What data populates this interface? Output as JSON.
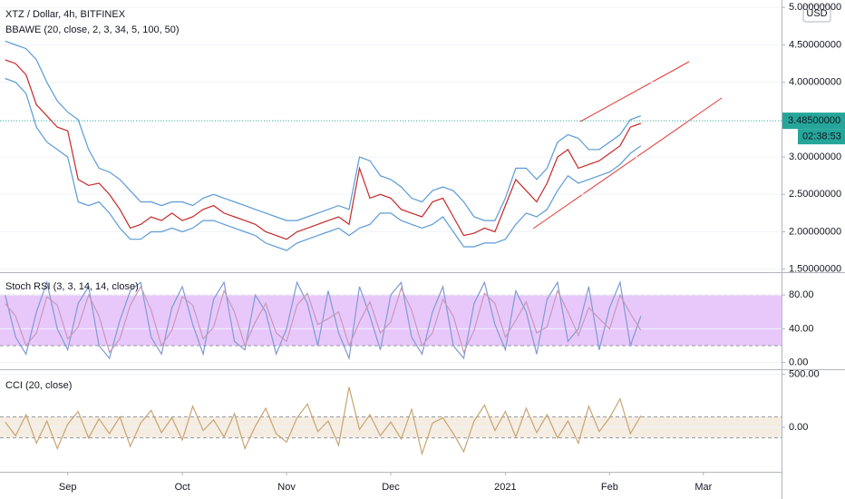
{
  "chart_data": [
    {
      "type": "line",
      "title": "XTZ / Dollar, 4h, BITFINEX",
      "subtitle": "BBAWE (20, close, 2, 3, 34, 5, 100, 50)",
      "currency": "USD",
      "last_price": {
        "value": 3.485,
        "label": "3.48500000"
      },
      "countdown": "02:38:53",
      "last_color": "#26a69a",
      "ylim": [
        1.46,
        5.1
      ],
      "yticks": [
        {
          "value": 1.5,
          "label": "1.50000000"
        },
        {
          "value": 2.0,
          "label": "2.00000000"
        },
        {
          "value": 2.5,
          "label": "2.50000000"
        },
        {
          "value": 3.0,
          "label": "3.00000000"
        },
        {
          "value": 4.0,
          "label": "4.00000000"
        },
        {
          "value": 4.5,
          "label": "4.50000000"
        },
        {
          "value": 5.0,
          "label": "5.00000000"
        }
      ],
      "grid": true,
      "series": [
        {
          "color": "#5b9bd5",
          "values": [
            4.55,
            4.5,
            4.45,
            4.3,
            4.0,
            3.75,
            3.6,
            3.5,
            3.1,
            2.85,
            2.8,
            2.7,
            2.55,
            2.4,
            2.4,
            2.35,
            2.4,
            2.4,
            2.35,
            2.45,
            2.5,
            2.45,
            2.4,
            2.35,
            2.3,
            2.25,
            2.2,
            2.15,
            2.15,
            2.2,
            2.25,
            2.3,
            2.35,
            2.3,
            3.0,
            2.95,
            2.75,
            2.7,
            2.6,
            2.45,
            2.4,
            2.55,
            2.6,
            2.55,
            2.4,
            2.2,
            2.15,
            2.15,
            2.45,
            2.85,
            2.85,
            2.7,
            2.85,
            3.2,
            3.3,
            3.25,
            3.1,
            3.1,
            3.2,
            3.3,
            3.5,
            3.55,
            null,
            null,
            null,
            null,
            null,
            null,
            null,
            null,
            null,
            null,
            null,
            null,
            null
          ]
        },
        {
          "color": "#5b9bd5",
          "values": [
            4.05,
            4.0,
            3.85,
            3.4,
            3.2,
            3.1,
            3.0,
            2.4,
            2.35,
            2.4,
            2.25,
            2.05,
            1.9,
            1.9,
            2.0,
            2.0,
            2.05,
            2.0,
            2.05,
            2.15,
            2.15,
            2.1,
            2.05,
            2.0,
            1.95,
            1.85,
            1.8,
            1.75,
            1.85,
            1.9,
            1.95,
            2.0,
            2.05,
            1.95,
            2.05,
            2.1,
            2.25,
            2.25,
            2.15,
            2.1,
            2.05,
            2.1,
            2.2,
            2.0,
            1.8,
            1.8,
            1.85,
            1.85,
            1.9,
            2.1,
            2.25,
            2.2,
            2.3,
            2.55,
            2.75,
            2.65,
            2.7,
            2.75,
            2.8,
            2.9,
            3.05,
            3.15,
            null,
            null,
            null,
            null,
            null,
            null,
            null,
            null,
            null,
            null,
            null,
            null,
            null
          ]
        },
        {
          "color": "#c62828",
          "values": [
            4.3,
            4.25,
            4.1,
            3.7,
            3.55,
            3.4,
            3.35,
            2.7,
            2.62,
            2.65,
            2.5,
            2.3,
            2.05,
            2.1,
            2.2,
            2.15,
            2.25,
            2.15,
            2.2,
            2.3,
            2.35,
            2.25,
            2.2,
            2.15,
            2.1,
            2.0,
            1.95,
            1.9,
            2.0,
            2.05,
            2.1,
            2.15,
            2.2,
            2.1,
            2.85,
            2.45,
            2.5,
            2.45,
            2.3,
            2.25,
            2.2,
            2.4,
            2.45,
            2.2,
            1.95,
            1.98,
            2.05,
            2.0,
            2.35,
            2.7,
            2.55,
            2.4,
            2.65,
            3.0,
            3.1,
            2.85,
            2.9,
            2.95,
            3.05,
            3.15,
            3.4,
            3.45,
            null,
            null,
            null,
            null,
            null,
            null,
            null,
            null,
            null,
            null,
            null,
            null,
            null
          ]
        }
      ]
    },
    {
      "type": "line",
      "title": "Stoch RSI (3, 3, 14, 14, close)",
      "ylim": [
        -8,
        106
      ],
      "yticks": [
        {
          "value": 0,
          "label": "0.00"
        },
        {
          "value": 40,
          "label": "40.00"
        },
        {
          "value": 80,
          "label": "80.00"
        }
      ],
      "grid": true,
      "band": [
        20,
        80
      ],
      "band_color": "#e8c8fb",
      "series": [
        {
          "color": "#7f9bd1",
          "values": [
            80,
            30,
            10,
            60,
            95,
            40,
            15,
            70,
            90,
            20,
            5,
            50,
            85,
            95,
            30,
            10,
            65,
            90,
            45,
            10,
            75,
            95,
            25,
            15,
            80,
            60,
            10,
            40,
            95,
            70,
            20,
            85,
            35,
            5,
            90,
            55,
            15,
            80,
            95,
            30,
            10,
            60,
            90,
            20,
            5,
            70,
            95,
            45,
            15,
            85,
            60,
            10,
            75,
            95,
            25,
            40,
            90,
            15,
            65,
            95,
            20,
            55,
            null,
            null,
            null,
            null,
            null,
            null,
            null,
            null,
            null,
            null,
            null,
            null,
            null
          ]
        },
        {
          "color": "#c79ab8",
          "values": [
            70,
            55,
            20,
            35,
            78,
            68,
            28,
            42,
            80,
            55,
            12,
            28,
            68,
            90,
            62,
            20,
            38,
            78,
            68,
            28,
            42,
            85,
            60,
            20,
            48,
            70,
            35,
            25,
            68,
            82,
            45,
            52,
            60,
            20,
            48,
            72,
            35,
            48,
            88,
            62,
            20,
            35,
            75,
            55,
            12,
            38,
            82,
            70,
            30,
            50,
            72,
            35,
            42,
            85,
            60,
            32,
            65,
            52,
            40,
            80,
            58,
            38,
            null,
            null,
            null,
            null,
            null,
            null,
            null,
            null,
            null,
            null,
            null,
            null,
            null
          ]
        }
      ]
    },
    {
      "type": "line",
      "title": "CCI (20, close)",
      "ylim": [
        -420,
        540
      ],
      "yticks": [
        {
          "value": 0,
          "label": "0.00"
        },
        {
          "value": 500,
          "label": "500.00"
        }
      ],
      "grid": true,
      "band": [
        -100,
        100
      ],
      "band_color": "#f5ede2",
      "categories": [
        null,
        null,
        null,
        null,
        null,
        null,
        "Sep",
        null,
        null,
        null,
        null,
        null,
        null,
        null,
        null,
        null,
        null,
        "Oct",
        null,
        null,
        null,
        null,
        null,
        null,
        null,
        null,
        null,
        "Nov",
        null,
        null,
        null,
        null,
        null,
        null,
        null,
        null,
        null,
        "Dec",
        null,
        null,
        null,
        null,
        null,
        null,
        null,
        null,
        null,
        null,
        "2021",
        null,
        null,
        null,
        null,
        null,
        null,
        null,
        null,
        null,
        "Feb",
        null,
        null,
        null,
        null,
        null,
        null,
        null,
        null,
        "Mar",
        null,
        null,
        null,
        null,
        null,
        null,
        null
      ],
      "series": [
        {
          "color": "#c8a472",
          "values": [
            50,
            -80,
            120,
            -150,
            60,
            -200,
            30,
            150,
            -100,
            80,
            -60,
            100,
            -180,
            40,
            160,
            -50,
            90,
            -120,
            200,
            -30,
            70,
            -90,
            130,
            -200,
            10,
            180,
            -60,
            -140,
            90,
            220,
            -40,
            60,
            -170,
            380,
            -20,
            120,
            -80,
            50,
            -110,
            170,
            -250,
            40,
            90,
            -60,
            -230,
            60,
            210,
            -30,
            150,
            -90,
            180,
            -50,
            120,
            -100,
            60,
            -150,
            200,
            -40,
            90,
            270,
            -60,
            110,
            null,
            null,
            null,
            null,
            null,
            null,
            null,
            null,
            null,
            null,
            null,
            null,
            null
          ]
        }
      ]
    }
  ]
}
